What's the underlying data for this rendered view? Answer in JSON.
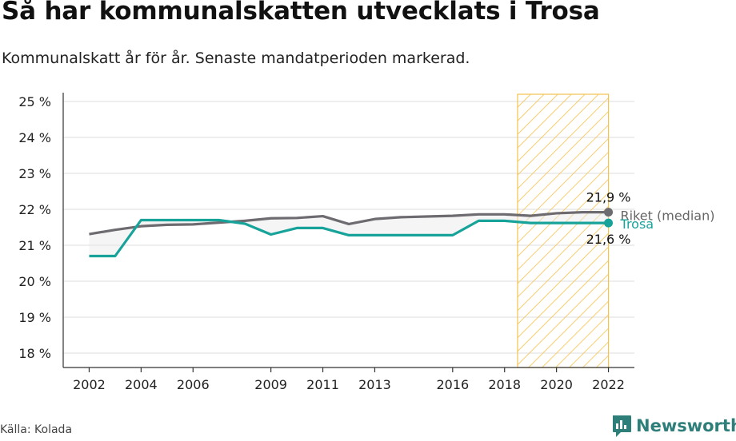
{
  "title": "Så har kommunalskatten utvecklats i Trosa",
  "subtitle": "Kommunalskatt år för år. Senaste mandatperioden markerad.",
  "source": "Källa: Kolada",
  "brand": {
    "name": "Newsworthy",
    "icon": "newsworthy-logo-icon",
    "color": "#2e7f7a"
  },
  "chart_data": {
    "type": "line",
    "x": [
      2002,
      2003,
      2004,
      2005,
      2006,
      2007,
      2008,
      2009,
      2010,
      2011,
      2012,
      2013,
      2014,
      2015,
      2016,
      2017,
      2018,
      2019,
      2020,
      2021,
      2022
    ],
    "series": [
      {
        "name": "Riket (median)",
        "color": "#6e6b70",
        "values": [
          21.31,
          21.43,
          21.53,
          21.57,
          21.58,
          21.63,
          21.68,
          21.75,
          21.76,
          21.81,
          21.59,
          21.73,
          21.78,
          21.8,
          21.82,
          21.86,
          21.86,
          21.82,
          21.89,
          21.92,
          21.92
        ],
        "end_label": "21,9 %"
      },
      {
        "name": "Trosa",
        "color": "#17a39a",
        "values": [
          20.7,
          20.7,
          21.7,
          21.7,
          21.7,
          21.7,
          21.6,
          21.3,
          21.48,
          21.48,
          21.28,
          21.28,
          21.28,
          21.28,
          21.28,
          21.68,
          21.68,
          21.62,
          21.62,
          21.62,
          21.62
        ],
        "end_label": "21,6 %"
      }
    ],
    "xticks": [
      2002,
      2004,
      2006,
      2009,
      2011,
      2013,
      2016,
      2018,
      2020,
      2022
    ],
    "yticks": [
      18,
      19,
      20,
      21,
      22,
      23,
      24,
      25
    ],
    "ytick_labels": [
      "18 %",
      "19 %",
      "20 %",
      "21 %",
      "22 %",
      "23 %",
      "24 %",
      "25 %"
    ],
    "xlim": [
      2001,
      2023
    ],
    "ylim": [
      17.6,
      25.2
    ],
    "highlight": {
      "from": 2018.5,
      "to": 2022,
      "label": "Senaste mandatperioden",
      "color": "#f5c24c"
    },
    "grid": true
  }
}
